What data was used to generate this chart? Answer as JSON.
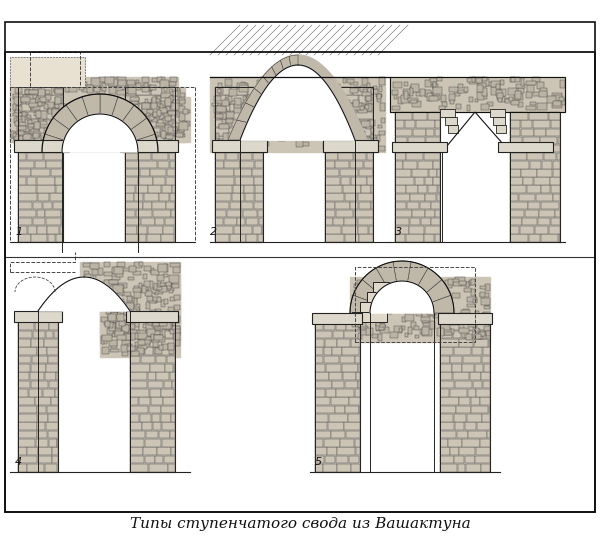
{
  "title": "Типы ступенчатого свода из Вашактуна",
  "title_fontsize": 11,
  "title_style": "italic",
  "bg_color": "#ffffff",
  "border_color": "#000000",
  "fig_width": 6.0,
  "fig_height": 5.42,
  "dpi": 100,
  "labels": [
    "1",
    "2",
    "3",
    "4",
    "5"
  ],
  "stone_color": "#888888",
  "stone_fill": "#cccccc",
  "line_color": "#000000",
  "dash_color": "#333333"
}
